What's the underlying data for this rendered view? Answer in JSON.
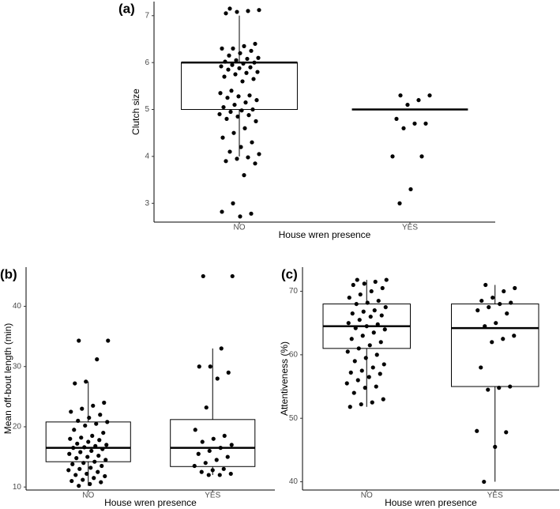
{
  "chart_data": [
    {
      "type": "box",
      "panel_label": "(a)",
      "x_label": "House wren presence",
      "y_label": "Clutch size",
      "categories": [
        "NO",
        "YES"
      ],
      "ylim": [
        2.6,
        7.3
      ],
      "yticks": [
        3,
        4,
        5,
        6,
        7
      ],
      "boxes": [
        {
          "whisker_low": 4,
          "q1": 5,
          "median": 6,
          "q3": 6,
          "whisker_high": 7
        },
        {
          "whisker_low": 5,
          "q1": 5,
          "median": 5,
          "q3": 5,
          "whisker_high": 5
        }
      ],
      "points": [
        [
          7.15,
          7.12,
          7.1,
          7.08,
          7.05,
          6.4,
          6.35,
          6.3,
          6.3,
          6.25,
          6.2,
          6.15,
          6.1,
          6.08,
          6.05,
          6.02,
          6.0,
          5.98,
          5.95,
          5.92,
          5.9,
          5.88,
          5.85,
          5.8,
          5.78,
          5.75,
          5.7,
          5.65,
          5.6,
          5.4,
          5.35,
          5.3,
          5.28,
          5.25,
          5.2,
          5.15,
          5.1,
          5.05,
          5.0,
          4.98,
          4.95,
          4.9,
          4.88,
          4.85,
          4.8,
          4.75,
          4.6,
          4.5,
          4.4,
          4.3,
          4.2,
          4.1,
          4.05,
          3.98,
          3.95,
          3.9,
          3.85,
          3.6,
          3.0,
          2.82,
          2.78,
          2.72
        ],
        [
          5.3,
          5.3,
          5.2,
          5.1,
          4.8,
          4.7,
          4.7,
          4.6,
          4.0,
          4.0,
          3.3,
          3.0
        ]
      ]
    },
    {
      "type": "box",
      "panel_label": "(b)",
      "x_label": "House wren presence",
      "y_label": "Mean off-bout length (min)",
      "categories": [
        "NO",
        "YES"
      ],
      "ylim": [
        9.5,
        46.5
      ],
      "yticks": [
        10,
        20,
        30,
        40
      ],
      "boxes": [
        {
          "whisker_low": 10.2,
          "q1": 14.2,
          "median": 16.5,
          "q3": 20.8,
          "whisker_high": 27.5
        },
        {
          "whisker_low": 12,
          "q1": 13.4,
          "median": 16.5,
          "q3": 21.2,
          "whisker_high": 33
        }
      ],
      "points": [
        [
          34.3,
          34.3,
          31.2,
          27.5,
          27.2,
          24,
          23.5,
          23,
          22.5,
          22,
          21.5,
          21,
          20.8,
          20.5,
          20.2,
          19.5,
          19,
          18.5,
          18.2,
          18,
          17.8,
          17.5,
          17.2,
          17,
          16.8,
          16.6,
          16.5,
          16.3,
          16,
          15.8,
          15.5,
          15.2,
          15,
          14.8,
          14.5,
          14.2,
          14,
          13.8,
          13.5,
          13.2,
          13,
          12.8,
          12.5,
          12.2,
          12,
          11.8,
          11.5,
          11.2,
          11,
          10.8,
          10.5,
          10.2
        ],
        [
          45,
          45,
          33,
          30,
          30,
          29,
          28,
          23.2,
          19.5,
          18.5,
          18,
          17.5,
          17,
          16.5,
          16,
          15.5,
          15,
          14.5,
          14,
          13.5,
          13,
          12.8,
          12.5,
          12.2,
          12,
          12
        ]
      ]
    },
    {
      "type": "box",
      "panel_label": "(c)",
      "x_label": "House wren presence",
      "y_label": "Attentiveness (%)",
      "categories": [
        "NO",
        "YES"
      ],
      "ylim": [
        38.7,
        73.8
      ],
      "yticks": [
        40,
        50,
        60,
        70
      ],
      "boxes": [
        {
          "whisker_low": 51.8,
          "q1": 61,
          "median": 64.5,
          "q3": 68,
          "whisker_high": 71.8
        },
        {
          "whisker_low": 40,
          "q1": 55,
          "median": 64.2,
          "q3": 68,
          "whisker_high": 71
        }
      ],
      "points": [
        [
          71.8,
          71.8,
          71.5,
          71.2,
          71,
          70.5,
          70,
          69.5,
          69,
          68.5,
          68.2,
          68,
          67.5,
          67,
          66.8,
          66.5,
          66.2,
          66,
          65.5,
          65,
          64.8,
          64.5,
          64.2,
          64,
          63.5,
          63,
          62.5,
          62,
          61.5,
          61,
          60.5,
          60,
          59.5,
          59,
          58.5,
          58,
          57.5,
          57.2,
          57,
          56.5,
          56,
          55.5,
          55,
          54.8,
          54,
          53,
          52.5,
          52.2,
          51.8
        ],
        [
          71,
          70.5,
          70,
          69,
          68.5,
          68.2,
          68,
          67.5,
          67,
          66.5,
          65,
          64.5,
          63,
          62.5,
          62,
          58,
          55,
          54.8,
          54.5,
          48,
          47.8,
          45.5,
          40
        ]
      ]
    }
  ]
}
